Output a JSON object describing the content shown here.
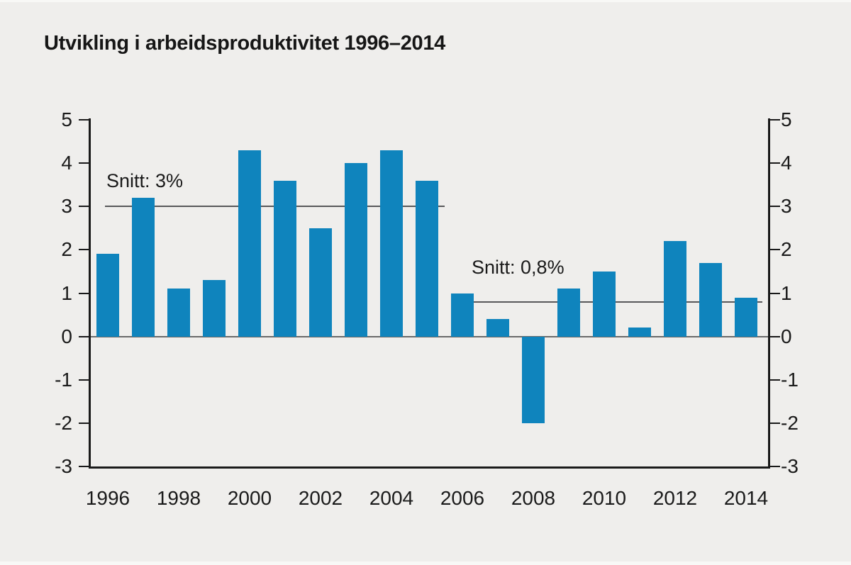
{
  "title": "Utvikling i arbeidsproduktivitet 1996–2014",
  "chart_data": {
    "type": "bar",
    "title": "Utvikling i arbeidsproduktivitet 1996–2014",
    "categories": [
      1996,
      1997,
      1998,
      1999,
      2000,
      2001,
      2002,
      2003,
      2004,
      2005,
      2006,
      2007,
      2008,
      2009,
      2010,
      2011,
      2012,
      2013,
      2014
    ],
    "values": [
      1.9,
      3.2,
      1.1,
      1.3,
      4.3,
      3.6,
      2.5,
      4.0,
      4.3,
      3.6,
      1.0,
      0.4,
      -2.0,
      1.1,
      1.5,
      0.2,
      2.2,
      1.7,
      0.9
    ],
    "xlabel": "",
    "ylabel": "",
    "ylim": [
      -3,
      5
    ],
    "y_ticks": [
      5,
      4,
      3,
      2,
      1,
      0,
      -1,
      -2,
      -3
    ],
    "y_tick_labels": [
      "5",
      "4",
      "3",
      "2",
      "1",
      "0",
      "-1",
      "-2",
      "-3"
    ],
    "x_tick_labels": [
      "1996",
      "1998",
      "2000",
      "2002",
      "2004",
      "2006",
      "2008",
      "2010",
      "2012",
      "2014"
    ],
    "grid": false,
    "legend": null,
    "y_axis_on_both_sides": true,
    "annotations": [
      {
        "label": "Snitt: 3%",
        "value": 3,
        "from_year": 1996,
        "to_year": 2005
      },
      {
        "label": "Snitt: 0,8%",
        "value": 0.8,
        "from_year": 2006,
        "to_year": 2014
      }
    ],
    "colors": {
      "bar": "#0f84bd",
      "background": "#efeeec",
      "axis": "#1a1a1a",
      "zero_line": "#6a6a6a",
      "reference_line": "#58585a",
      "text": "#1a1a1a"
    }
  }
}
